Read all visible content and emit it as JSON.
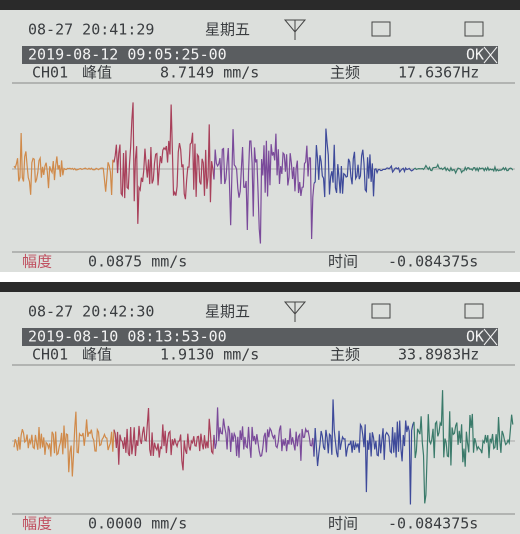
{
  "screens": [
    {
      "status_time": "08-27 20:41:29",
      "weekday": "星期五",
      "ok": "OK",
      "record_time": "2019-08-12 09:05:25-00",
      "channel": "CH01",
      "peak_label": "峰值",
      "peak_value": "8.7149 mm/s",
      "freq_label": "主频",
      "freq_value": "17.6367Hz",
      "amp_label": "幅度",
      "amp_value": "0.0875 mm/s",
      "time_label": "时间",
      "time_value": "-0.084375s"
    },
    {
      "status_time": "08-27 20:42:30",
      "weekday": "星期五",
      "ok": "OK",
      "record_time": "2019-08-10 08:13:53-00",
      "channel": "CH01",
      "peak_label": "峰值",
      "peak_value": "1.9130 mm/s",
      "freq_label": "主频",
      "freq_value": "33.8983Hz",
      "amp_label": "幅度",
      "amp_value": "0.0000 mm/s",
      "time_label": "时间",
      "time_value": "-0.084375s"
    }
  ]
}
